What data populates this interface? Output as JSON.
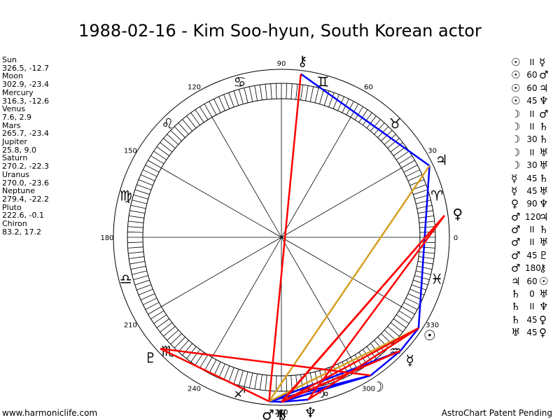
{
  "title": "1988-02-16 - Kim Soo-hyun, South Korean actor",
  "footer_left": "www.harmoniclife.com",
  "footer_right": "AstroChart Patent Pending",
  "planet_list": [
    {
      "name": "Sun",
      "value": "326.5, -12.7"
    },
    {
      "name": "Moon",
      "value": "302.9, -23.4"
    },
    {
      "name": "Mercury",
      "value": "316.3, -12.6"
    },
    {
      "name": "Venus",
      "value": "7.6, 2.9"
    },
    {
      "name": "Mars",
      "value": "265.7, -23.4"
    },
    {
      "name": "Jupiter",
      "value": "25.8, 9.0"
    },
    {
      "name": "Saturn",
      "value": "270.2, -22.3"
    },
    {
      "name": "Uranus",
      "value": "270.0, -23.6"
    },
    {
      "name": "Neptune",
      "value": "279.4, -22.2"
    },
    {
      "name": "Pluto",
      "value": "222.6, -0.1"
    },
    {
      "name": "Chiron",
      "value": "83.2, 17.2"
    }
  ],
  "degree_labels": [
    {
      "deg": 0,
      "text": "0"
    },
    {
      "deg": 30,
      "text": "30"
    },
    {
      "deg": 60,
      "text": "60"
    },
    {
      "deg": 90,
      "text": "90"
    },
    {
      "deg": 120,
      "text": "120"
    },
    {
      "deg": 150,
      "text": "150"
    },
    {
      "deg": 180,
      "text": "180"
    },
    {
      "deg": 210,
      "text": "210"
    },
    {
      "deg": 240,
      "text": "240"
    },
    {
      "deg": 270,
      "text": "270"
    },
    {
      "deg": 300,
      "text": "300"
    },
    {
      "deg": 330,
      "text": "330"
    }
  ],
  "zodiac_signs": [
    "♈",
    "♉",
    "♊",
    "♋",
    "♌",
    "♍",
    "♎",
    "♏",
    "♐",
    "♑",
    "♒",
    "♓"
  ],
  "planets": [
    {
      "key": "sun",
      "glyph": "☉",
      "lon": 326.5
    },
    {
      "key": "moon",
      "glyph": "☽",
      "lon": 302.9
    },
    {
      "key": "mercury",
      "glyph": "☿",
      "lon": 316.3
    },
    {
      "key": "venus",
      "glyph": "♀",
      "lon": 7.6
    },
    {
      "key": "mars",
      "glyph": "♂",
      "lon": 265.7
    },
    {
      "key": "jupiter",
      "glyph": "♃",
      "lon": 25.8
    },
    {
      "key": "saturn",
      "glyph": "♄",
      "lon": 270.2
    },
    {
      "key": "uranus",
      "glyph": "♅",
      "lon": 270.0
    },
    {
      "key": "neptune",
      "glyph": "♆",
      "lon": 279.4
    },
    {
      "key": "pluto",
      "glyph": "♇",
      "lon": 222.6
    },
    {
      "key": "chiron",
      "glyph": "⚷",
      "lon": 83.2
    }
  ],
  "aspects": [
    {
      "p1": "sun",
      "p2": "mercury",
      "label": "II",
      "color": "#0000ff"
    },
    {
      "p1": "sun",
      "p2": "mars",
      "label": "60",
      "color": "#d4a020"
    },
    {
      "p1": "sun",
      "p2": "jupiter",
      "label": "60",
      "color": "#d4a020"
    },
    {
      "p1": "sun",
      "p2": "neptune",
      "label": "45",
      "color": "#ff0000"
    },
    {
      "p1": "moon",
      "p2": "mars",
      "label": "II",
      "color": "#0000ff"
    },
    {
      "p1": "moon",
      "p2": "saturn",
      "label": "II",
      "color": "#0000ff"
    },
    {
      "p1": "moon",
      "p2": "saturn",
      "label": "30",
      "color": "#0000ff"
    },
    {
      "p1": "moon",
      "p2": "uranus",
      "label": "II",
      "color": "#0000ff"
    },
    {
      "p1": "moon",
      "p2": "uranus",
      "label": "30",
      "color": "#0000ff"
    },
    {
      "p1": "mercury",
      "p2": "saturn",
      "label": "45",
      "color": "#ff0000"
    },
    {
      "p1": "mercury",
      "p2": "uranus",
      "label": "45",
      "color": "#ff0000"
    },
    {
      "p1": "venus",
      "p2": "neptune",
      "label": "90",
      "color": "#ff0000"
    },
    {
      "p1": "mars",
      "p2": "jupiter",
      "label": "120",
      "color": "#d4a020"
    },
    {
      "p1": "mars",
      "p2": "saturn",
      "label": "II",
      "color": "#0000ff"
    },
    {
      "p1": "mars",
      "p2": "uranus",
      "label": "II",
      "color": "#0000ff"
    },
    {
      "p1": "mars",
      "p2": "pluto",
      "label": "45",
      "color": "#ff0000"
    },
    {
      "p1": "mars",
      "p2": "chiron",
      "label": "180",
      "color": "#ff0000"
    },
    {
      "p1": "jupiter",
      "p2": "sun",
      "label": "60",
      "color": "#d4a020"
    },
    {
      "p1": "saturn",
      "p2": "uranus",
      "label": "0",
      "color": "#0000ff"
    },
    {
      "p1": "saturn",
      "p2": "neptune",
      "label": "II",
      "color": "#0000ff"
    },
    {
      "p1": "saturn",
      "p2": "venus",
      "label": "45",
      "color": "#ff0000"
    },
    {
      "p1": "uranus",
      "p2": "venus",
      "label": "45",
      "color": "#ff0000"
    }
  ],
  "aspect_lines": [
    {
      "p1": "sun",
      "p2": "mercury",
      "color": "#0000ff"
    },
    {
      "p1": "moon",
      "p2": "mars",
      "color": "#0000ff"
    },
    {
      "p1": "moon",
      "p2": "saturn",
      "color": "#0000ff"
    },
    {
      "p1": "moon",
      "p2": "uranus",
      "color": "#0000ff"
    },
    {
      "p1": "mars",
      "p2": "saturn",
      "color": "#0000ff"
    },
    {
      "p1": "mars",
      "p2": "uranus",
      "color": "#0000ff"
    },
    {
      "p1": "saturn",
      "p2": "uranus",
      "color": "#0000ff"
    },
    {
      "p1": "saturn",
      "p2": "neptune",
      "color": "#0000ff"
    },
    {
      "p1": "sun",
      "p2": "jupiter",
      "color": "#0000ff"
    },
    {
      "p1": "chiron",
      "p2": "jupiter",
      "color": "#0000ff"
    },
    {
      "p1": "mercury",
      "p2": "moon",
      "color": "#0000ff"
    },
    {
      "p1": "mercury",
      "p2": "mars",
      "color": "#0000ff"
    },
    {
      "p1": "jupiter",
      "p2": "mars",
      "color": "#d4a020"
    },
    {
      "p1": "sun",
      "p2": "mars",
      "color": "#d4a020"
    },
    {
      "p1": "sun",
      "p2": "neptune",
      "color": "#ff0000"
    },
    {
      "p1": "mercury",
      "p2": "saturn",
      "color": "#ff0000"
    },
    {
      "p1": "mercury",
      "p2": "uranus",
      "color": "#ff0000"
    },
    {
      "p1": "venus",
      "p2": "neptune",
      "color": "#ff0000"
    },
    {
      "p1": "mars",
      "p2": "pluto",
      "color": "#ff0000"
    },
    {
      "p1": "mars",
      "p2": "chiron",
      "color": "#ff0000"
    },
    {
      "p1": "saturn",
      "p2": "venus",
      "color": "#ff0000"
    },
    {
      "p1": "uranus",
      "p2": "venus",
      "color": "#ff0000"
    },
    {
      "p1": "moon",
      "p2": "pluto",
      "color": "#ff0000"
    },
    {
      "p1": "sun",
      "p2": "saturn",
      "color": "#ff0000"
    }
  ]
}
